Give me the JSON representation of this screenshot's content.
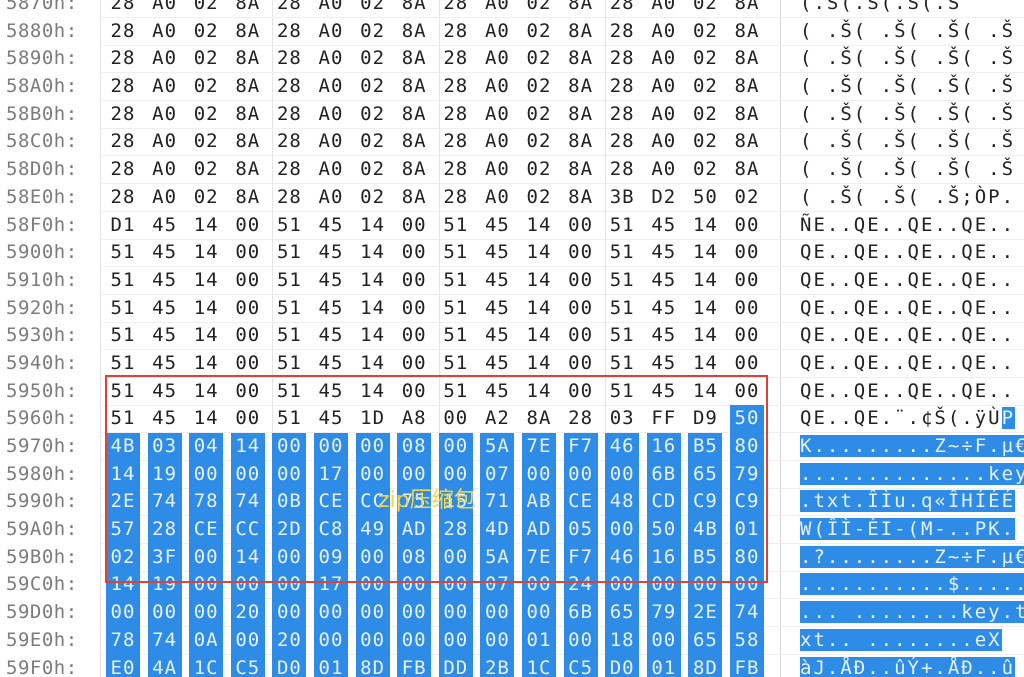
{
  "hex_view": {
    "rows": [
      {
        "addr": "5870h:",
        "bytes": [
          "28",
          "A0",
          "02",
          "8A",
          "28",
          "A0",
          "02",
          "8A",
          "28",
          "A0",
          "02",
          "8A",
          "28",
          "A0",
          "02",
          "8A"
        ],
        "ascii": "(.Š(.Š(.Š(.Š",
        "sel_from": -1,
        "ascii_sel_from": -1
      },
      {
        "addr": "5880h:",
        "bytes": [
          "28",
          "A0",
          "02",
          "8A",
          "28",
          "A0",
          "02",
          "8A",
          "28",
          "A0",
          "02",
          "8A",
          "28",
          "A0",
          "02",
          "8A"
        ],
        "ascii": "( .Š( .Š( .Š( .Š",
        "sel_from": -1,
        "ascii_sel_from": -1
      },
      {
        "addr": "5890h:",
        "bytes": [
          "28",
          "A0",
          "02",
          "8A",
          "28",
          "A0",
          "02",
          "8A",
          "28",
          "A0",
          "02",
          "8A",
          "28",
          "A0",
          "02",
          "8A"
        ],
        "ascii": "( .Š( .Š( .Š( .Š",
        "sel_from": -1,
        "ascii_sel_from": -1
      },
      {
        "addr": "58A0h:",
        "bytes": [
          "28",
          "A0",
          "02",
          "8A",
          "28",
          "A0",
          "02",
          "8A",
          "28",
          "A0",
          "02",
          "8A",
          "28",
          "A0",
          "02",
          "8A"
        ],
        "ascii": "( .Š( .Š( .Š( .Š",
        "sel_from": -1,
        "ascii_sel_from": -1
      },
      {
        "addr": "58B0h:",
        "bytes": [
          "28",
          "A0",
          "02",
          "8A",
          "28",
          "A0",
          "02",
          "8A",
          "28",
          "A0",
          "02",
          "8A",
          "28",
          "A0",
          "02",
          "8A"
        ],
        "ascii": "( .Š( .Š( .Š( .Š",
        "sel_from": -1,
        "ascii_sel_from": -1
      },
      {
        "addr": "58C0h:",
        "bytes": [
          "28",
          "A0",
          "02",
          "8A",
          "28",
          "A0",
          "02",
          "8A",
          "28",
          "A0",
          "02",
          "8A",
          "28",
          "A0",
          "02",
          "8A"
        ],
        "ascii": "( .Š( .Š( .Š( .Š",
        "sel_from": -1,
        "ascii_sel_from": -1
      },
      {
        "addr": "58D0h:",
        "bytes": [
          "28",
          "A0",
          "02",
          "8A",
          "28",
          "A0",
          "02",
          "8A",
          "28",
          "A0",
          "02",
          "8A",
          "28",
          "A0",
          "02",
          "8A"
        ],
        "ascii": "( .Š( .Š( .Š( .Š",
        "sel_from": -1,
        "ascii_sel_from": -1
      },
      {
        "addr": "58E0h:",
        "bytes": [
          "28",
          "A0",
          "02",
          "8A",
          "28",
          "A0",
          "02",
          "8A",
          "28",
          "A0",
          "02",
          "8A",
          "3B",
          "D2",
          "50",
          "02"
        ],
        "ascii": "( .Š( .Š( .Š;ÒP.",
        "sel_from": -1,
        "ascii_sel_from": -1
      },
      {
        "addr": "58F0h:",
        "bytes": [
          "D1",
          "45",
          "14",
          "00",
          "51",
          "45",
          "14",
          "00",
          "51",
          "45",
          "14",
          "00",
          "51",
          "45",
          "14",
          "00"
        ],
        "ascii": "ÑE..QE..QE..QE..",
        "sel_from": -1,
        "ascii_sel_from": -1
      },
      {
        "addr": "5900h:",
        "bytes": [
          "51",
          "45",
          "14",
          "00",
          "51",
          "45",
          "14",
          "00",
          "51",
          "45",
          "14",
          "00",
          "51",
          "45",
          "14",
          "00"
        ],
        "ascii": "QE..QE..QE..QE..",
        "sel_from": -1,
        "ascii_sel_from": -1
      },
      {
        "addr": "5910h:",
        "bytes": [
          "51",
          "45",
          "14",
          "00",
          "51",
          "45",
          "14",
          "00",
          "51",
          "45",
          "14",
          "00",
          "51",
          "45",
          "14",
          "00"
        ],
        "ascii": "QE..QE..QE..QE..",
        "sel_from": -1,
        "ascii_sel_from": -1
      },
      {
        "addr": "5920h:",
        "bytes": [
          "51",
          "45",
          "14",
          "00",
          "51",
          "45",
          "14",
          "00",
          "51",
          "45",
          "14",
          "00",
          "51",
          "45",
          "14",
          "00"
        ],
        "ascii": "QE..QE..QE..QE..",
        "sel_from": -1,
        "ascii_sel_from": -1
      },
      {
        "addr": "5930h:",
        "bytes": [
          "51",
          "45",
          "14",
          "00",
          "51",
          "45",
          "14",
          "00",
          "51",
          "45",
          "14",
          "00",
          "51",
          "45",
          "14",
          "00"
        ],
        "ascii": "QE..QE..QE..QE..",
        "sel_from": -1,
        "ascii_sel_from": -1
      },
      {
        "addr": "5940h:",
        "bytes": [
          "51",
          "45",
          "14",
          "00",
          "51",
          "45",
          "14",
          "00",
          "51",
          "45",
          "14",
          "00",
          "51",
          "45",
          "14",
          "00"
        ],
        "ascii": "QE..QE..QE..QE..",
        "sel_from": -1,
        "ascii_sel_from": -1
      },
      {
        "addr": "5950h:",
        "bytes": [
          "51",
          "45",
          "14",
          "00",
          "51",
          "45",
          "14",
          "00",
          "51",
          "45",
          "14",
          "00",
          "51",
          "45",
          "14",
          "00"
        ],
        "ascii": "QE..QE..QE..QE..",
        "sel_from": -1,
        "ascii_sel_from": -1
      },
      {
        "addr": "5960h:",
        "bytes": [
          "51",
          "45",
          "14",
          "00",
          "51",
          "45",
          "1D",
          "A8",
          "00",
          "A2",
          "8A",
          "28",
          "03",
          "FF",
          "D9",
          "50"
        ],
        "ascii": "QE..QE.¨.¢Š(.ÿÙP",
        "sel_from": 15,
        "ascii_sel_from": 15
      },
      {
        "addr": "5970h:",
        "bytes": [
          "4B",
          "03",
          "04",
          "14",
          "00",
          "00",
          "00",
          "08",
          "00",
          "5A",
          "7E",
          "F7",
          "46",
          "16",
          "B5",
          "80"
        ],
        "ascii": "K.........Z~÷F.µ€",
        "sel_from": 0,
        "ascii_sel_from": 0
      },
      {
        "addr": "5980h:",
        "bytes": [
          "14",
          "19",
          "00",
          "00",
          "00",
          "17",
          "00",
          "00",
          "00",
          "07",
          "00",
          "00",
          "00",
          "6B",
          "65",
          "79"
        ],
        "ascii": "..............key",
        "sel_from": 0,
        "ascii_sel_from": 0
      },
      {
        "addr": "5990h:",
        "bytes": [
          "2E",
          "74",
          "78",
          "74",
          "0B",
          "CE",
          "CC",
          "75",
          "15",
          "71",
          "AB",
          "CE",
          "48",
          "CD",
          "C9",
          "C9"
        ],
        "ascii": ".txt.ÎÌu.q«ÎHÍÉÉ",
        "sel_from": 0,
        "ascii_sel_from": 0
      },
      {
        "addr": "59A0h:",
        "bytes": [
          "57",
          "28",
          "CE",
          "CC",
          "2D",
          "C8",
          "49",
          "AD",
          "28",
          "4D",
          "AD",
          "05",
          "00",
          "50",
          "4B",
          "01"
        ],
        "ascii": "W(ÎÌ-ÈI-(M-..PK.",
        "sel_from": 0,
        "ascii_sel_from": 0
      },
      {
        "addr": "59B0h:",
        "bytes": [
          "02",
          "3F",
          "00",
          "14",
          "00",
          "09",
          "00",
          "08",
          "00",
          "5A",
          "7E",
          "F7",
          "46",
          "16",
          "B5",
          "80"
        ],
        "ascii": ".?........Z~÷F.µ€",
        "sel_from": 0,
        "ascii_sel_from": 0
      },
      {
        "addr": "59C0h:",
        "bytes": [
          "14",
          "19",
          "00",
          "00",
          "00",
          "17",
          "00",
          "00",
          "00",
          "07",
          "00",
          "24",
          "00",
          "00",
          "00",
          "00"
        ],
        "ascii": "...........$.....",
        "sel_from": 0,
        "ascii_sel_from": 0
      },
      {
        "addr": "59D0h:",
        "bytes": [
          "00",
          "00",
          "00",
          "20",
          "00",
          "00",
          "00",
          "00",
          "00",
          "00",
          "00",
          "6B",
          "65",
          "79",
          "2E",
          "74"
        ],
        "ascii": "... ........key.t",
        "sel_from": 0,
        "ascii_sel_from": 0
      },
      {
        "addr": "59E0h:",
        "bytes": [
          "78",
          "74",
          "0A",
          "00",
          "20",
          "00",
          "00",
          "00",
          "00",
          "00",
          "01",
          "00",
          "18",
          "00",
          "65",
          "58"
        ],
        "ascii": "xt.. ........eX",
        "sel_from": 0,
        "ascii_sel_from": 0
      },
      {
        "addr": "59F0h:",
        "bytes": [
          "E0",
          "4A",
          "1C",
          "C5",
          "D0",
          "01",
          "8D",
          "FB",
          "DD",
          "2B",
          "1C",
          "C5",
          "D0",
          "01",
          "8D",
          "FB"
        ],
        "ascii": "àJ.ÅÐ..ûÝ+.ÅÐ..û",
        "sel_from": 0,
        "ascii_sel_from": 0
      }
    ]
  },
  "annotation": {
    "label": "zip压缩包",
    "box_color": "#e0403a",
    "label_color": "#f3d64a"
  },
  "colors": {
    "selection_bg": "#2f8ce6",
    "selection_fg": "#e6f1ff",
    "address_fg": "#7c7c7c",
    "text_fg": "#222222"
  }
}
